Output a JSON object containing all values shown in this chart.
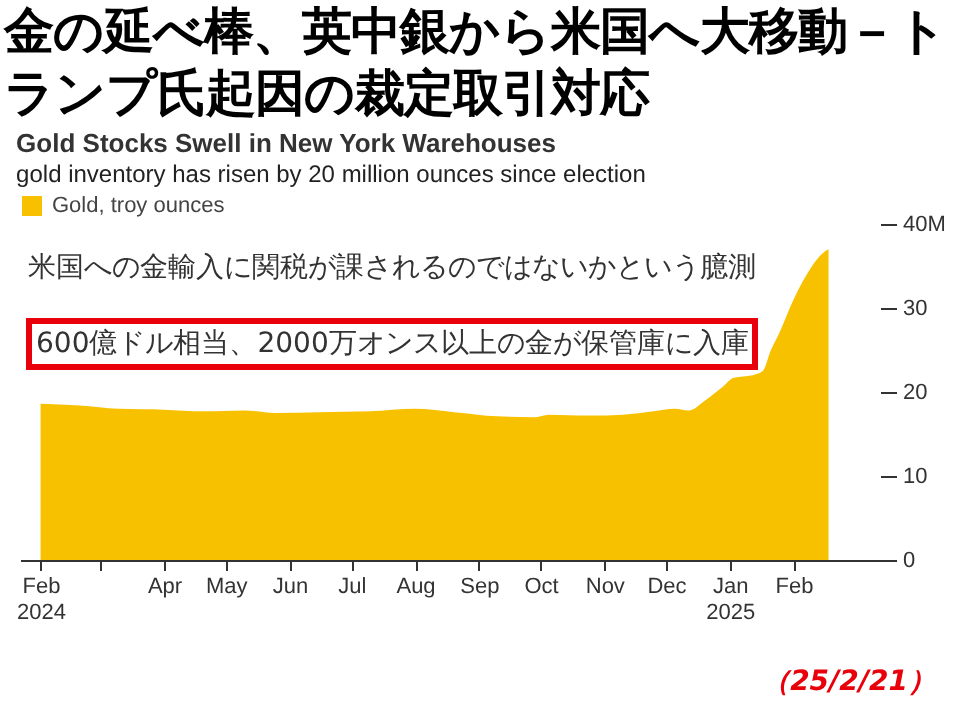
{
  "chart_data": {
    "type": "area",
    "title": "Gold Stocks Swell in New York Warehouses",
    "subtitle": "gold inventory has risen by 20 million ounces since election",
    "annotations": [
      "金の延べ棒、英中銀から米国へ大移動－トランプ氏起因の裁定取引対応",
      "米国への金輸入に関税が課されるのではないかという臆測",
      "600億ドル相当、2000万オンス以上の金が保管庫に入庫",
      "（25/2/21）"
    ],
    "x": [
      "2024-02-01",
      "2024-02-20",
      "2024-03-10",
      "2024-04-01",
      "2024-04-20",
      "2024-05-10",
      "2024-05-25",
      "2024-06-15",
      "2024-07-10",
      "2024-08-01",
      "2024-08-20",
      "2024-09-10",
      "2024-09-28",
      "2024-10-05",
      "2024-10-25",
      "2024-11-10",
      "2024-11-25",
      "2024-12-05",
      "2024-12-12",
      "2024-12-20",
      "2024-12-28",
      "2025-01-03",
      "2025-01-12",
      "2025-01-17",
      "2025-01-21",
      "2025-01-25",
      "2025-02-01",
      "2025-02-10",
      "2025-02-15",
      "2025-02-18"
    ],
    "series": [
      {
        "name": "Gold, troy ounces",
        "color": "#f8c100",
        "values": [
          18.6,
          18.4,
          18.0,
          17.9,
          17.7,
          17.8,
          17.5,
          17.6,
          17.7,
          18.0,
          17.6,
          17.1,
          17.0,
          17.3,
          17.2,
          17.3,
          17.7,
          18.0,
          17.8,
          19.0,
          20.5,
          21.7,
          22.0,
          22.5,
          25.0,
          27.0,
          31.0,
          35.0,
          36.5,
          37.0
        ]
      }
    ],
    "xlim": [
      "2024-01-22",
      "2025-03-15"
    ],
    "xticks": [
      {
        "value": "2024-02-01",
        "label": "Feb 2024"
      },
      {
        "value": "2024-03-01",
        "label": null
      },
      {
        "value": "2024-04-01",
        "label": "Apr"
      },
      {
        "value": "2024-05-01",
        "label": "May"
      },
      {
        "value": "2024-06-01",
        "label": "Jun"
      },
      {
        "value": "2024-07-01",
        "label": "Jul"
      },
      {
        "value": "2024-08-01",
        "label": "Aug"
      },
      {
        "value": "2024-09-01",
        "label": "Sep"
      },
      {
        "value": "2024-10-01",
        "label": "Oct"
      },
      {
        "value": "2024-11-01",
        "label": "Nov"
      },
      {
        "value": "2024-12-01",
        "label": "Dec"
      },
      {
        "value": "2025-01-01",
        "label": "Jan 2025"
      },
      {
        "value": "2025-02-01",
        "label": "Feb"
      }
    ],
    "ylim": [
      0,
      40
    ],
    "yticks": [
      0,
      10,
      20,
      30,
      {
        "value": 40,
        "label": "40M"
      }
    ],
    "grid": false,
    "legend": "top left"
  }
}
